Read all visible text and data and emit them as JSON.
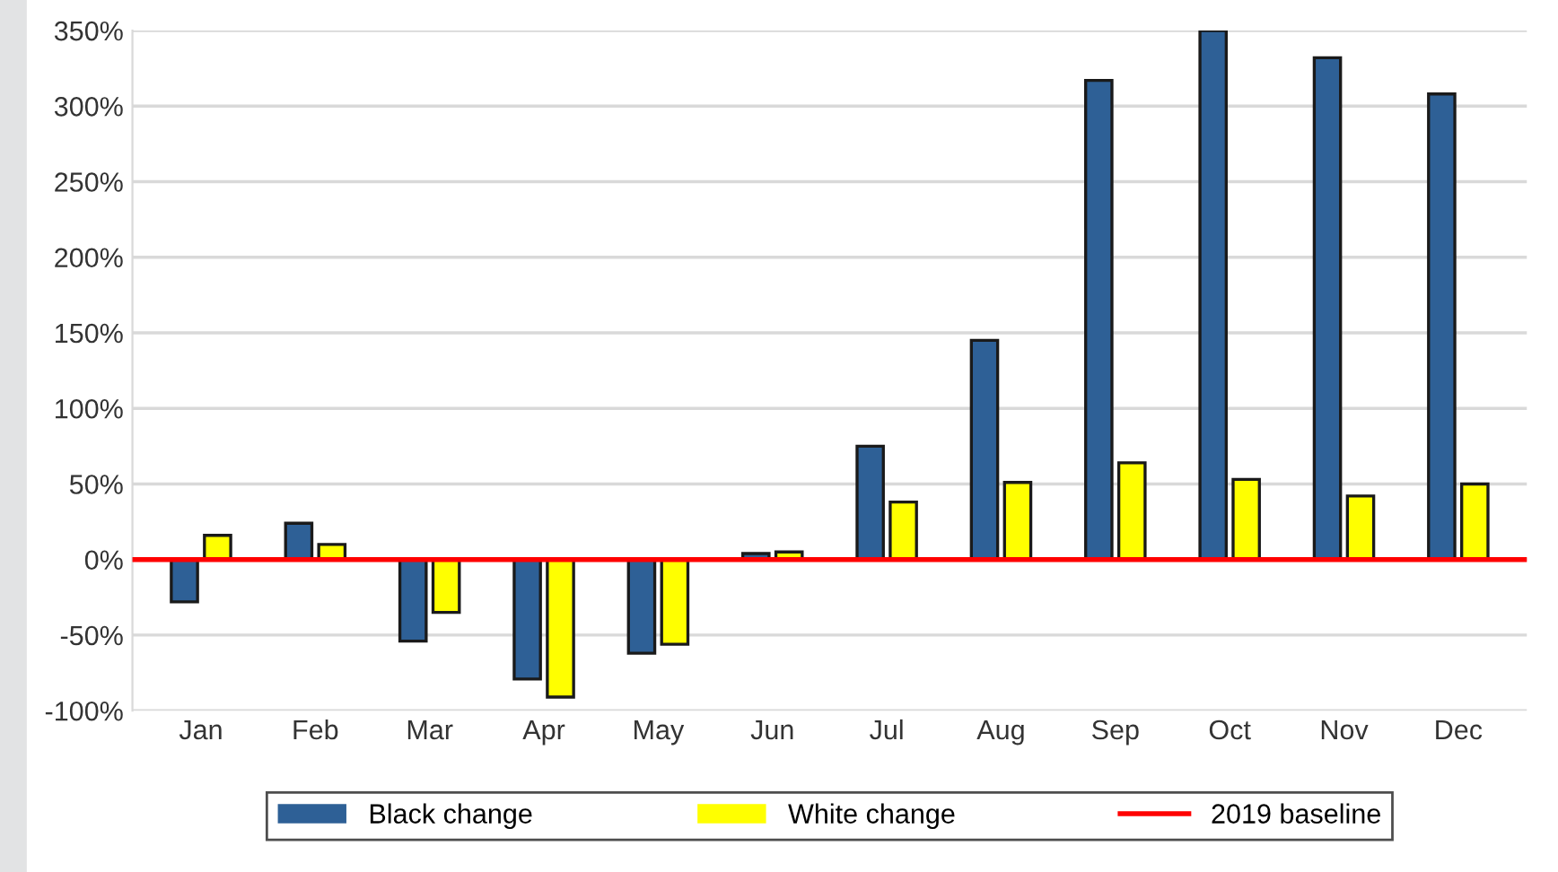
{
  "chart_data": {
    "type": "bar",
    "categories": [
      "Jan",
      "Feb",
      "Mar",
      "Apr",
      "May",
      "Jun",
      "Jul",
      "Aug",
      "Sep",
      "Oct",
      "Nov",
      "Dec"
    ],
    "series": [
      {
        "name": "Black change",
        "color": "#2e6096",
        "values": [
          -28,
          24,
          -54,
          -79,
          -62,
          4,
          75,
          145,
          317,
          350,
          332,
          308
        ]
      },
      {
        "name": "White change",
        "color": "#ffff00",
        "values": [
          16,
          10,
          -35,
          -91,
          -56,
          5,
          38,
          51,
          64,
          53,
          42,
          50
        ]
      }
    ],
    "ylim": [
      -100,
      350
    ],
    "yticks": [
      {
        "value": -100,
        "label": "-100%"
      },
      {
        "value": -50,
        "label": "-50%"
      },
      {
        "value": 0,
        "label": "0%"
      },
      {
        "value": 50,
        "label": "50%"
      },
      {
        "value": 100,
        "label": "100%"
      },
      {
        "value": 150,
        "label": "150%"
      },
      {
        "value": 200,
        "label": "200%"
      },
      {
        "value": 250,
        "label": "250%"
      },
      {
        "value": 300,
        "label": "300%"
      },
      {
        "value": 350,
        "label": "350%"
      }
    ],
    "ref_lines": [
      {
        "axis": "y",
        "value": 0,
        "label": "2019 baseline",
        "color": "#ff0000"
      }
    ],
    "grid": "y",
    "legend": "bottom"
  }
}
